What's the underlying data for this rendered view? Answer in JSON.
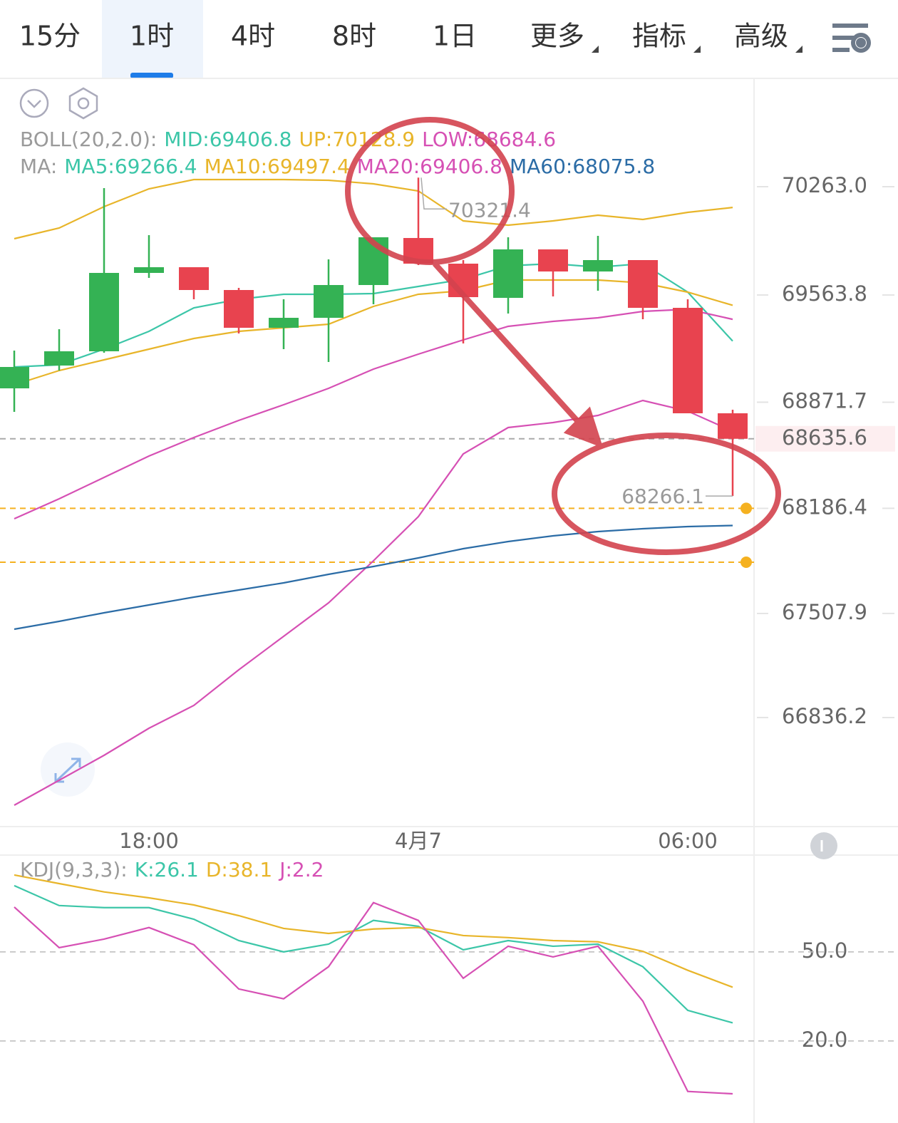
{
  "tabs": {
    "items": [
      "15分",
      "1时",
      "4时",
      "8时",
      "1日",
      "更多",
      "指标",
      "高级"
    ],
    "selected": 1
  },
  "chart_data": [
    {
      "type": "candlestick",
      "categories": [
        null,
        null,
        null,
        "18:00",
        null,
        null,
        null,
        null,
        null,
        "4月7",
        null,
        null,
        null,
        null,
        null,
        "06:00",
        null
      ],
      "open": [
        68961.2,
        69108.4,
        69200.4,
        69706.4,
        69743.2,
        69596,
        69352.2,
        69416.6,
        69628.2,
        69931.8,
        69766.2,
        69545.4,
        69858.2,
        69715.6,
        69789.2,
        69481,
        68800.2
      ],
      "high": [
        69205,
        69343,
        70253.8,
        69950.2,
        69743.2,
        69609.8,
        69536.2,
        69793.8,
        69936.4,
        70321.4,
        69789.2,
        69936.4,
        69858.2,
        69945.6,
        69789.2,
        69536.2,
        68823.2
      ],
      "low": [
        68809.4,
        69076.2,
        69191.2,
        69674.2,
        69536.2,
        69315.4,
        69214.2,
        69131.4,
        69504,
        69757,
        69251,
        69444.2,
        69554.6,
        69591.4,
        69407.4,
        68800.2,
        68266.1
      ],
      "close": [
        69099.2,
        69200.4,
        69706.4,
        69743.2,
        69596,
        69352.2,
        69416.6,
        69628.2,
        69936.4,
        69766.2,
        69550,
        69858.2,
        69715.6,
        69789.2,
        69481,
        68800.2,
        68635.6
      ],
      "up_color": "#34b254",
      "down_color": "#e8434f",
      "overlays": [
        {
          "color": "#e8b52a",
          "values": [
            69927.2,
            69996.2,
            70134.2,
            70249.2,
            70309,
            70309,
            70309,
            70304.4,
            70281.4,
            70235.4,
            70042.2,
            70014.6,
            70042.2,
            70079,
            70051.4,
            70097.4,
            70128.9
          ]
        },
        {
          "color": "#3cc6a8",
          "values": [
            69099.2,
            69113,
            69214.2,
            69329.2,
            69481,
            69536.2,
            69568.4,
            69568.4,
            69573,
            69619,
            69665,
            69752.4,
            69766.2,
            69743.2,
            69766.2,
            69582.2,
            69266.4
          ]
        },
        {
          "color": "#e8b52a",
          "values": [
            68984.2,
            69076.2,
            69145.2,
            69214.2,
            69283.2,
            69329.2,
            69352.2,
            69375.2,
            69490.2,
            69568.4,
            69591.4,
            69660.4,
            69660.4,
            69660.4,
            69642,
            69582.2,
            69497.4
          ]
        },
        {
          "color": "#d650b4",
          "values": [
            68119.4,
            68248.2,
            68386.2,
            68524.2,
            68643.8,
            68754.2,
            68855.4,
            68961.2,
            69085.4,
            69182,
            69274,
            69361.4,
            69393.6,
            69416.6,
            69458,
            69471.8,
            69406.8
          ]
        },
        {
          "color": "#d650b4",
          "values": [
            66270.2,
            66431.2,
            66592.2,
            66767,
            66914.2,
            67144.2,
            67360.4,
            67576.6,
            67848,
            68133.2,
            68538,
            68708.2,
            68740.4,
            68786.4,
            68883,
            68814,
            68684.6
          ]
        },
        {
          "color": "#2b6ca6",
          "values": [
            67406.4,
            67457,
            67512.2,
            67562.8,
            67613.4,
            67659.4,
            67705.4,
            67760.6,
            67811.2,
            67866.4,
            67926.2,
            67972.2,
            68009,
            68036.6,
            68055,
            68068.8,
            68075.8
          ]
        }
      ],
      "legend_rows": [
        [
          {
            "text": "BOLL(20,2.0):",
            "color": "#9a9a9a"
          },
          {
            "text": "MID:69406.8",
            "color": "#3cc6a8"
          },
          {
            "text": "UP:70128.9",
            "color": "#e8b52a"
          },
          {
            "text": "LOW:68684.6",
            "color": "#d650b4"
          }
        ],
        [
          {
            "text": "MA:",
            "color": "#9a9a9a"
          },
          {
            "text": "MA5:69266.4",
            "color": "#3cc6a8"
          },
          {
            "text": "MA10:69497.4",
            "color": "#e8b52a"
          },
          {
            "text": "MA20:69406.8",
            "color": "#d650b4"
          },
          {
            "text": "MA60:68075.8",
            "color": "#2b6ca6"
          }
        ]
      ],
      "ylim": [
        66132.2,
        70962.2
      ],
      "yticks": [
        {
          "value": 70263,
          "label": "70263.0"
        },
        {
          "value": 69563.8,
          "label": "69563.8"
        },
        {
          "value": 68871.7,
          "label": "68871.7"
        },
        {
          "value": 68186.4,
          "label": "68186.4"
        },
        {
          "value": 67507.9,
          "label": "67507.9"
        },
        {
          "value": 66836.2,
          "label": "66836.2"
        }
      ],
      "max_label": "70321.4",
      "min_label": "68266.1",
      "last_price": {
        "value": 68635.6,
        "label": "68635.6"
      },
      "alert_lines": [
        68186.4,
        67838.8
      ],
      "alert_color": "#f5b120"
    },
    {
      "type": "line",
      "legend_rows": [
        [
          {
            "text": "KDJ(9,3,3):",
            "color": "#9a9a9a"
          },
          {
            "text": "K:26.1",
            "color": "#3cc6a8"
          },
          {
            "text": "D:38.1",
            "color": "#e8b52a"
          },
          {
            "text": "J:2.2",
            "color": "#d650b4"
          }
        ]
      ],
      "series": [
        {
          "color": "#3cc6a8",
          "values": [
            72.3,
            65.6,
            64.9,
            64.9,
            61.0,
            53.8,
            50.0,
            52.6,
            60.6,
            58.6,
            50.7,
            53.8,
            51.9,
            52.6,
            45.0,
            30.3,
            26.1
          ]
        },
        {
          "color": "#e8b52a",
          "values": [
            75.9,
            73.0,
            70.2,
            68.2,
            65.8,
            62.2,
            57.9,
            56.2,
            57.7,
            58.2,
            55.5,
            54.8,
            53.8,
            53.4,
            50.2,
            43.8,
            38.1
          ]
        },
        {
          "color": "#d650b4",
          "values": [
            65.1,
            51.4,
            54.3,
            58.2,
            52.4,
            37.5,
            34.2,
            45.0,
            66.6,
            60.6,
            41.1,
            51.9,
            48.3,
            51.9,
            33.4,
            3.0,
            2.2
          ]
        }
      ],
      "ylim": [
        -5,
        82.6
      ],
      "yticks": [
        {
          "value": 50,
          "label": "50.0"
        },
        {
          "value": 20,
          "label": "20.0"
        }
      ],
      "grid": true
    }
  ]
}
